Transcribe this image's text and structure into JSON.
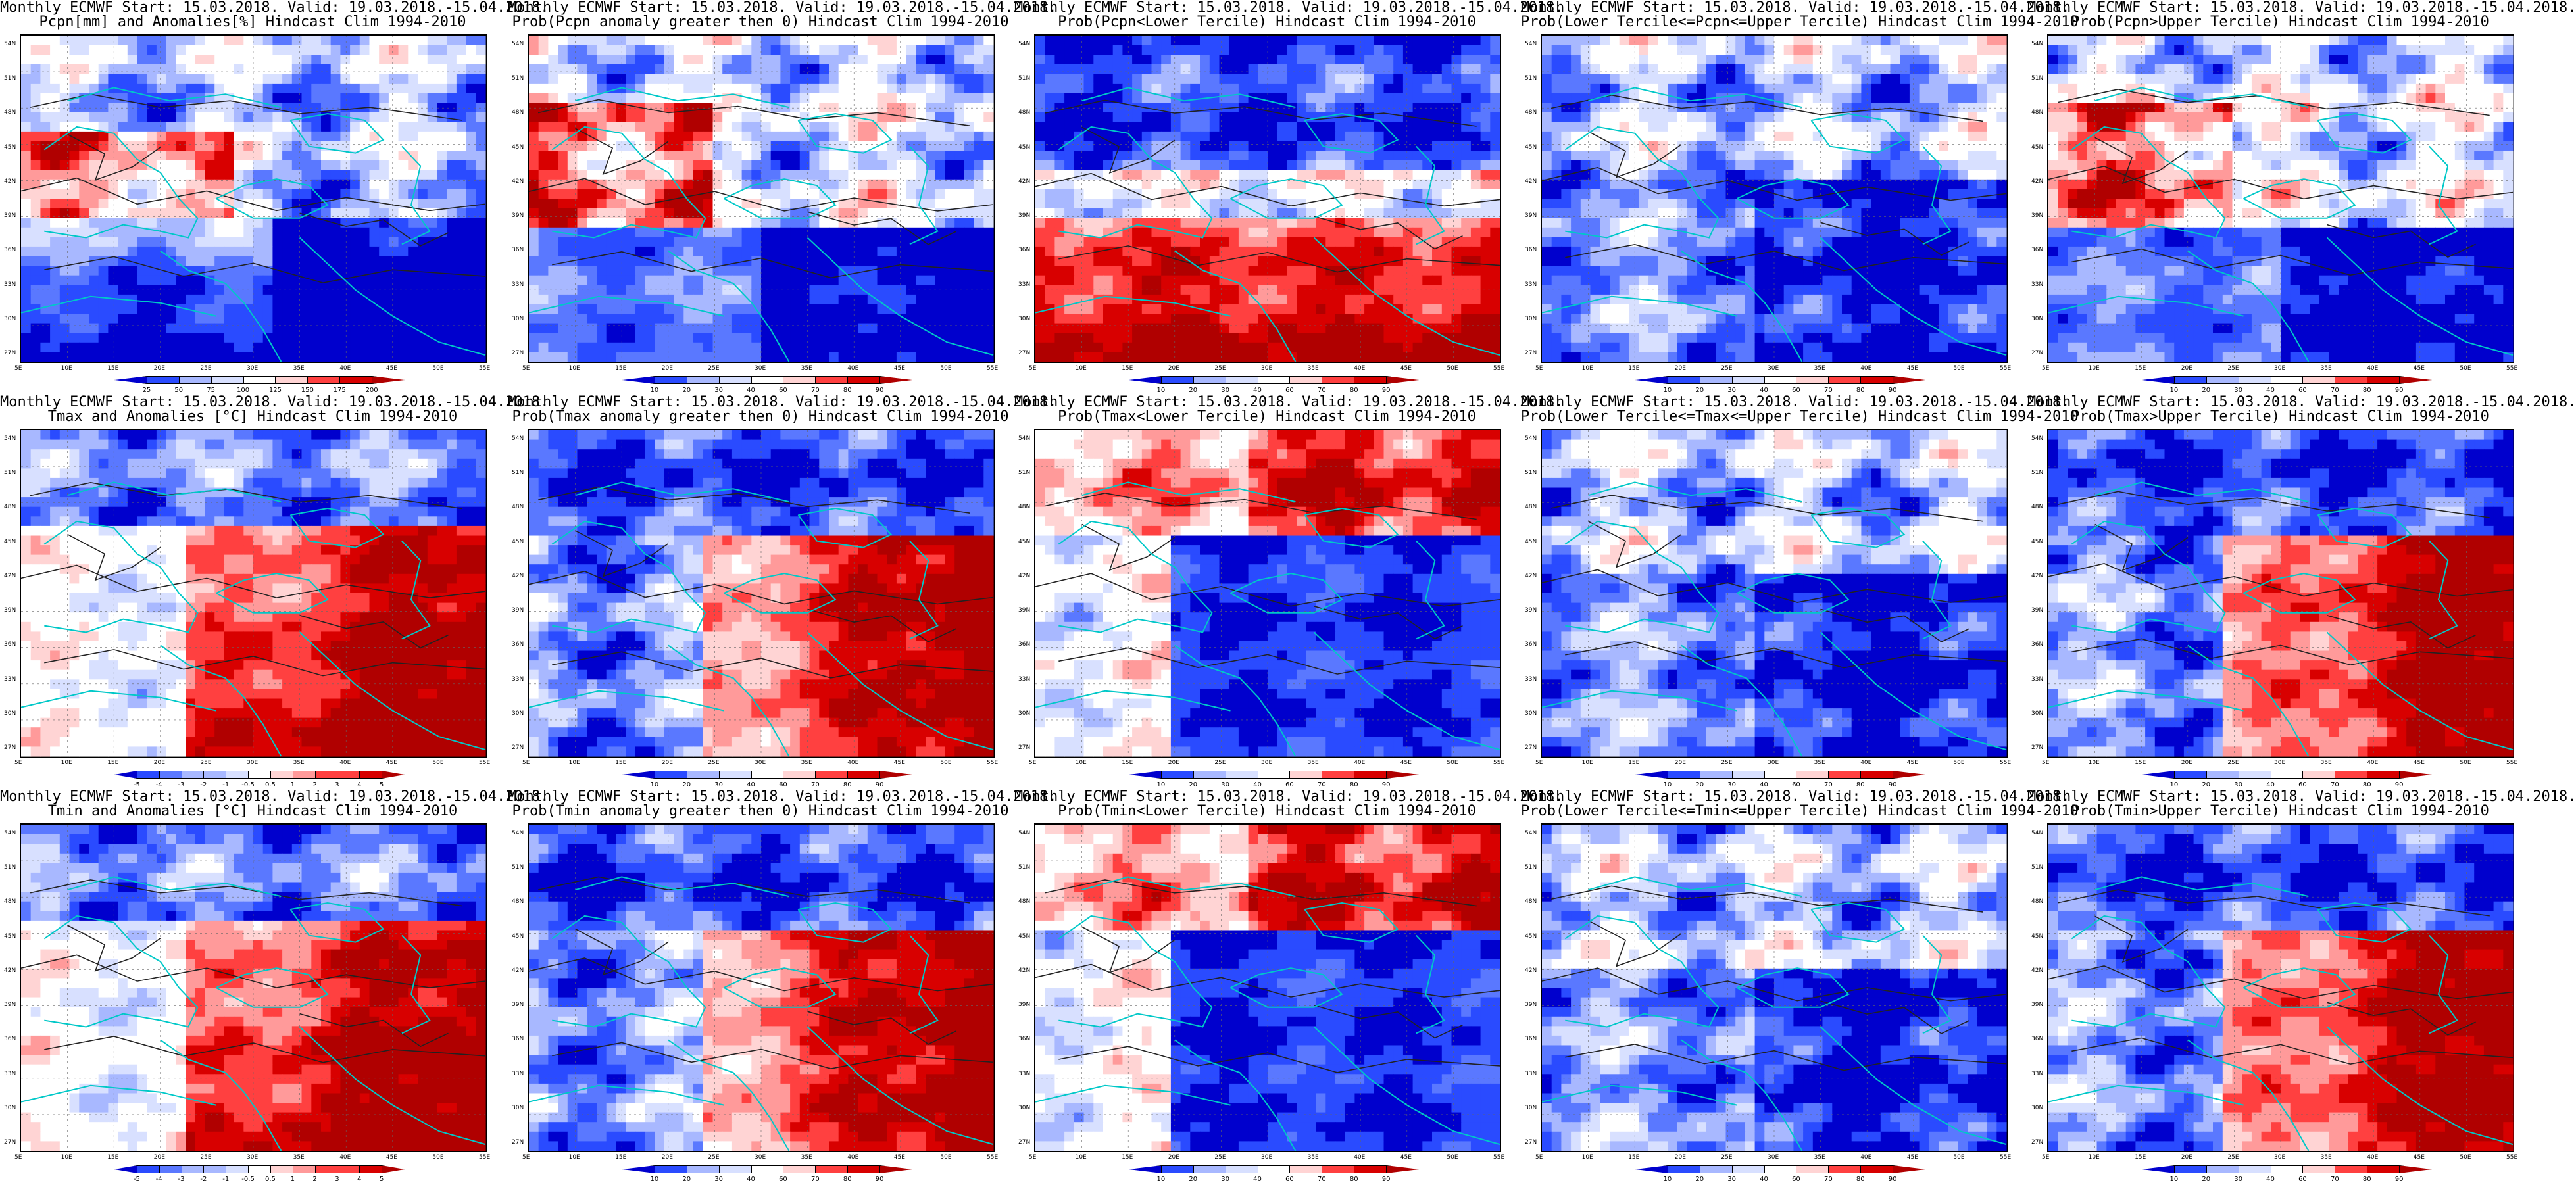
{
  "panels": [
    {
      "id": "p11",
      "title1": "Monthly ECMWF Start: 15.03.2018. Valid: 19.03.2018.-15.04.2018.",
      "title2": "Pcpn[mm] and Anomalies[%] Hindcast Clim 1994-2010",
      "scheme": "precip_anom",
      "ticks": [
        "25",
        "50",
        "75",
        "100",
        "125",
        "150",
        "175",
        "200"
      ]
    },
    {
      "id": "p12",
      "title1": "Monthly ECMWF Start: 15.03.2018. Valid: 19.03.2018.-15.04.2018.",
      "title2": "Prob(Pcpn anomaly greater then 0) Hindcast Clim 1994-2010",
      "scheme": "prob_mix",
      "ticks": [
        "10",
        "20",
        "30",
        "40",
        "60",
        "70",
        "80",
        "90"
      ]
    },
    {
      "id": "p13",
      "title1": "Monthly ECMWF Start: 15.03.2018. Valid: 19.03.2018.-15.04.2018.",
      "title2": "Prob(Pcpn<Lower Tercile) Hindcast Clim 1994-2010",
      "scheme": "prob_blue_north_red_south",
      "ticks": [
        "10",
        "20",
        "30",
        "40",
        "60",
        "70",
        "80",
        "90"
      ]
    },
    {
      "id": "p14",
      "title1": "Monthly ECMWF Start: 15.03.2018. Valid: 19.03.2018.-15.04.2018.",
      "title2": "Prob(Lower Tercile<=Pcpn<=Upper Tercile) Hindcast Clim 1994-2010",
      "scheme": "prob_blue_light",
      "ticks": [
        "10",
        "20",
        "30",
        "40",
        "60",
        "70",
        "80",
        "90"
      ]
    },
    {
      "id": "p15",
      "title1": "Monthly ECMWF Start: 15.03.2018. Valid: 19.03.2018.-15.04.2018.",
      "title2": "Prob(Pcpn>Upper Tercile) Hindcast Clim 1994-2010",
      "scheme": "prob_mix",
      "ticks": [
        "10",
        "20",
        "30",
        "40",
        "60",
        "70",
        "80",
        "90"
      ]
    },
    {
      "id": "p21",
      "title1": "Monthly ECMWF Start: 15.03.2018. Valid: 19.03.2018.-15.04.2018.",
      "title2": "Tmax and Anomalies [°C] Hindcast Clim 1994-2010",
      "scheme": "temp_anom",
      "ticks": [
        "-5",
        "-4",
        "-3",
        "-2",
        "-1",
        "-0.5",
        "0.5",
        "1",
        "2",
        "3",
        "4",
        "5"
      ]
    },
    {
      "id": "p22",
      "title1": "Monthly ECMWF Start: 15.03.2018. Valid: 19.03.2018.-15.04.2018.",
      "title2": "Prob(Tmax anomaly greater then 0) Hindcast Clim 1994-2010",
      "scheme": "prob_blue_north_red_se",
      "ticks": [
        "10",
        "20",
        "30",
        "40",
        "60",
        "70",
        "80",
        "90"
      ]
    },
    {
      "id": "p23",
      "title1": "Monthly ECMWF Start: 15.03.2018. Valid: 19.03.2018.-15.04.2018.",
      "title2": "Prob(Tmax<Lower Tercile) Hindcast Clim 1994-2010",
      "scheme": "prob_red_north_blue_south",
      "ticks": [
        "10",
        "20",
        "30",
        "40",
        "60",
        "70",
        "80",
        "90"
      ]
    },
    {
      "id": "p24",
      "title1": "Monthly ECMWF Start: 15.03.2018. Valid: 19.03.2018.-15.04.2018.",
      "title2": "Prob(Lower Tercile<=Tmax<=Upper Tercile) Hindcast Clim 1994-2010",
      "scheme": "prob_blue_light",
      "ticks": [
        "10",
        "20",
        "30",
        "40",
        "60",
        "70",
        "80",
        "90"
      ]
    },
    {
      "id": "p25",
      "title1": "Monthly ECMWF Start: 15.03.2018. Valid: 19.03.2018.-15.04.2018.",
      "title2": "Prob(Tmax>Upper Tercile) Hindcast Clim 1994-2010",
      "scheme": "prob_blue_north_red_se",
      "ticks": [
        "10",
        "20",
        "30",
        "40",
        "60",
        "70",
        "80",
        "90"
      ]
    },
    {
      "id": "p31",
      "title1": "Monthly ECMWF Start: 15.03.2018. Valid: 19.03.2018.-15.04.2018.",
      "title2": "Tmin and Anomalies [°C] Hindcast Clim 1994-2010",
      "scheme": "temp_anom",
      "ticks": [
        "-5",
        "-4",
        "-3",
        "-2",
        "-1",
        "-0.5",
        "0.5",
        "1",
        "2",
        "3",
        "4",
        "5"
      ]
    },
    {
      "id": "p32",
      "title1": "Monthly ECMWF Start: 15.03.2018. Valid: 19.03.2018.-15.04.2018.",
      "title2": "Prob(Tmin anomaly greater then 0) Hindcast Clim 1994-2010",
      "scheme": "prob_blue_north_red_se",
      "ticks": [
        "10",
        "20",
        "30",
        "40",
        "60",
        "70",
        "80",
        "90"
      ]
    },
    {
      "id": "p33",
      "title1": "Monthly ECMWF Start: 15.03.2018. Valid: 19.03.2018.-15.04.2018.",
      "title2": "Prob(Tmin<Lower Tercile) Hindcast Clim 1994-2010",
      "scheme": "prob_red_north_blue_south",
      "ticks": [
        "10",
        "20",
        "30",
        "40",
        "60",
        "70",
        "80",
        "90"
      ]
    },
    {
      "id": "p34",
      "title1": "Monthly ECMWF Start: 15.03.2018. Valid: 19.03.2018.-15.04.2018.",
      "title2": "Prob(Lower Tercile<=Tmin<=Upper Tercile) Hindcast Clim 1994-2010",
      "scheme": "prob_blue_light",
      "ticks": [
        "10",
        "20",
        "30",
        "40",
        "60",
        "70",
        "80",
        "90"
      ]
    },
    {
      "id": "p35",
      "title1": "Monthly ECMWF Start: 15.03.2018. Valid: 19.03.2018.-15.04.2018.",
      "title2": "Prob(Tmin>Upper Tercile) Hindcast Clim 1994-2010",
      "scheme": "prob_blue_north_red_se",
      "ticks": [
        "10",
        "20",
        "30",
        "40",
        "60",
        "70",
        "80",
        "90"
      ]
    }
  ],
  "lat_labels": [
    "54N",
    "51N",
    "48N",
    "45N",
    "42N",
    "39N",
    "36N",
    "33N",
    "30N",
    "27N"
  ],
  "lon_labels": [
    "5E",
    "10E",
    "15E",
    "20E",
    "25E",
    "30E",
    "35E",
    "40E",
    "45E",
    "50E",
    "55E"
  ],
  "colors": {
    "deep_blue": "#0000cd",
    "blue": "#2a4bff",
    "mid_blue": "#5a78ff",
    "light_blue": "#a8b8ff",
    "pale_blue": "#d8e0ff",
    "white": "#ffffff",
    "pale_red": "#ffd4d4",
    "light_red": "#ff9a9a",
    "red": "#ff4040",
    "deep_red": "#d80000",
    "dark_red": "#b00000",
    "coast": "#00c8c8"
  }
}
